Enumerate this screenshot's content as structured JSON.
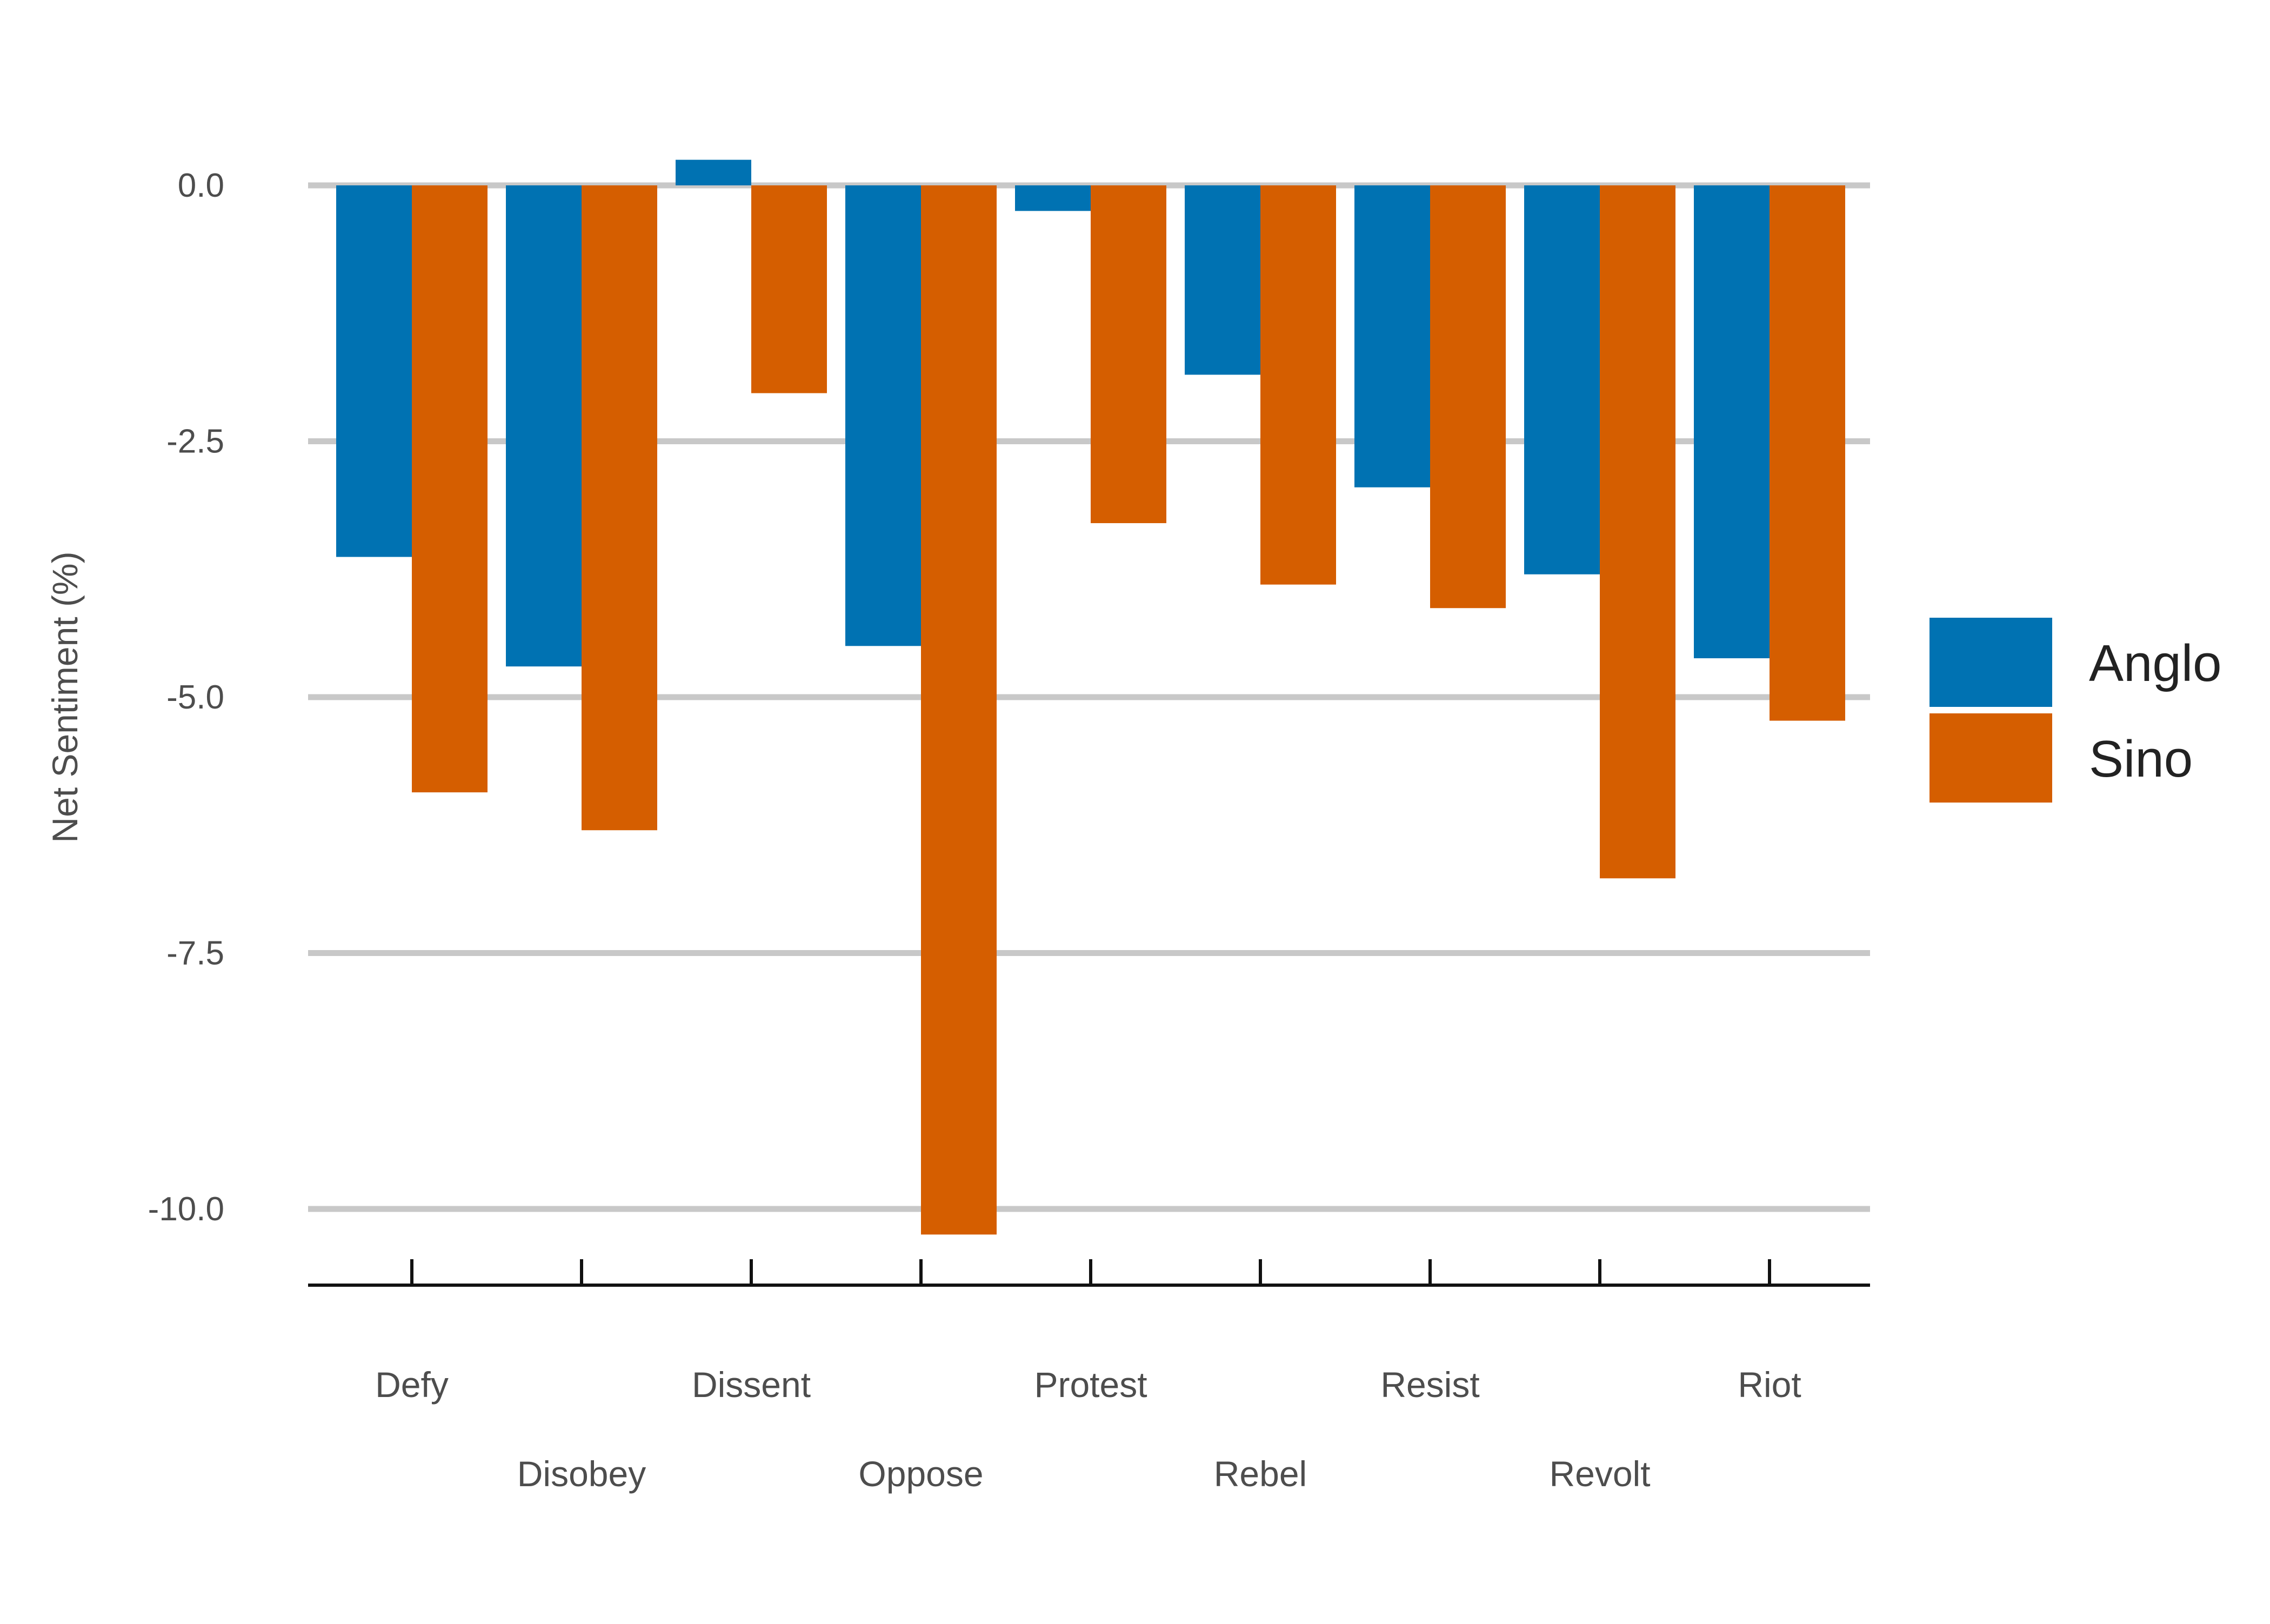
{
  "chart_data": {
    "type": "bar",
    "title": "",
    "xlabel": "",
    "ylabel": "Net Sentiment (%)",
    "categories": [
      "Defy",
      "Disobey",
      "Dissent",
      "Oppose",
      "Protest",
      "Rebel",
      "Resist",
      "Revolt",
      "Riot"
    ],
    "series": [
      {
        "name": "Anglo",
        "color": "#0072b2",
        "values": [
          -3.63,
          -4.7,
          0.25,
          -4.5,
          -0.25,
          -1.85,
          -2.95,
          -3.8,
          -4.62
        ]
      },
      {
        "name": "Sino",
        "color": "#d55e00",
        "values": [
          -5.93,
          -6.3,
          -2.03,
          -10.25,
          -3.3,
          -3.9,
          -4.13,
          -6.77,
          -5.23
        ]
      }
    ],
    "ylim": [
      -10.75,
      0.5
    ],
    "yticks": [
      0.0,
      -2.5,
      -5.0,
      -7.5,
      -10.0
    ],
    "ytick_labels": [
      "0.0",
      "-2.5",
      "-5.0",
      "-7.5",
      "-10.0"
    ],
    "grid": "horizontal",
    "legend_position": "right"
  }
}
